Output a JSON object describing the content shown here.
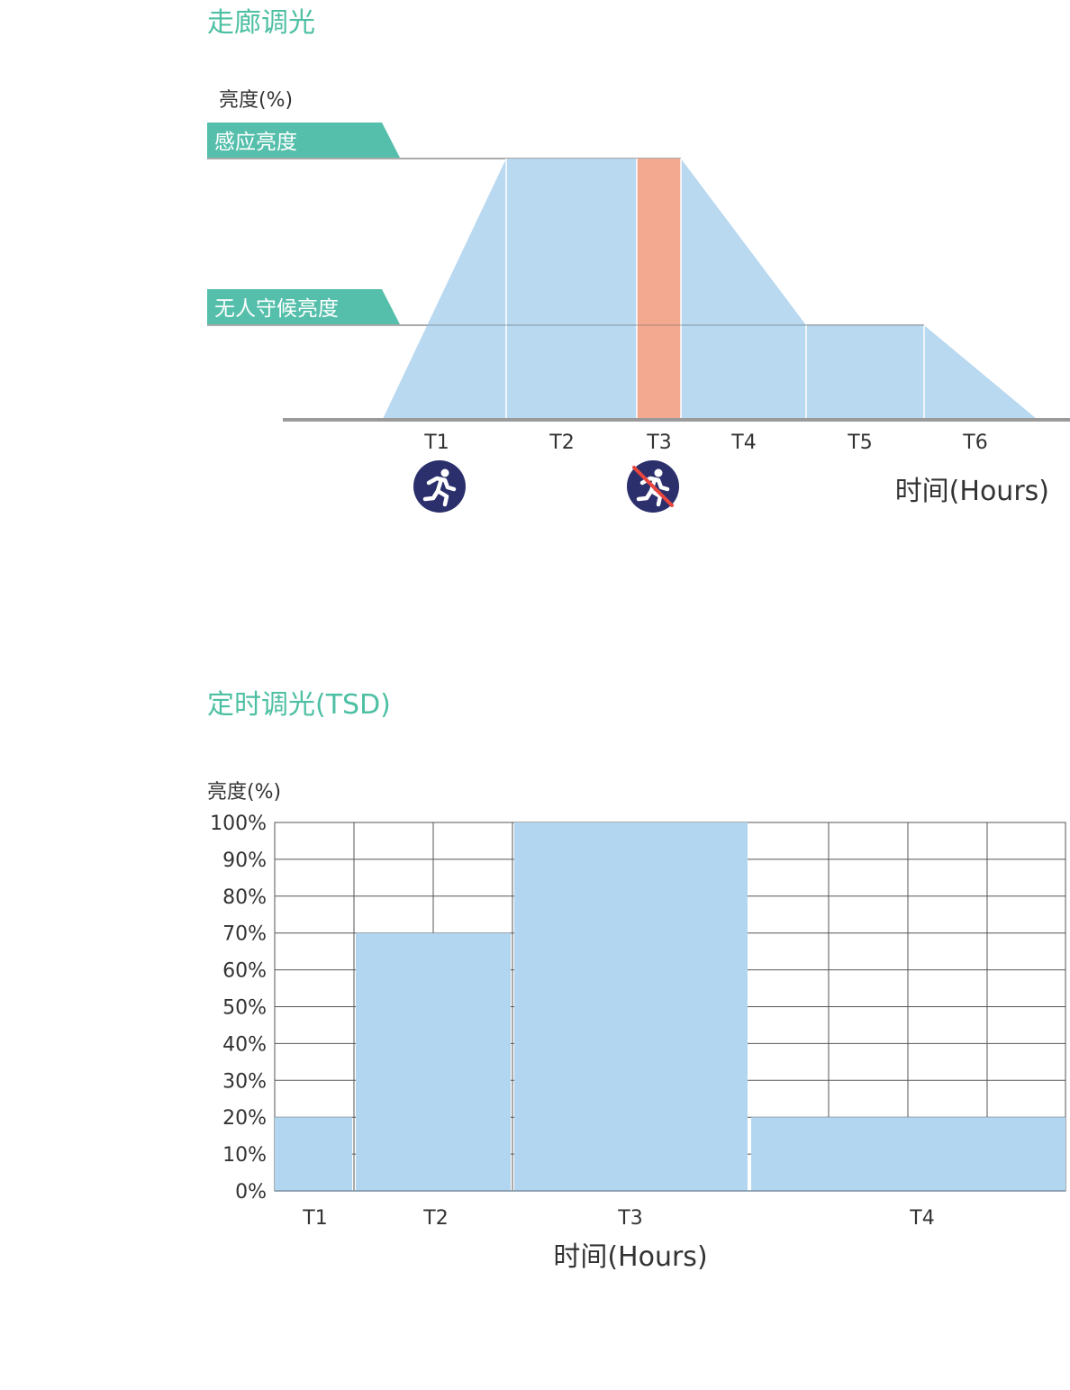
{
  "colors": {
    "title": "#4dbfa3",
    "fill": "#b3d6f0",
    "highlight": "#f3a98f",
    "label_tag": "#55bfab",
    "axis": "#9a9a9a",
    "text": "#333333",
    "grid": "#555555",
    "icon_bg": "#2b2f6b",
    "icon_slash": "#e8463f"
  },
  "sections": {
    "corridor_title": "走廊调光",
    "tsd_title": "定时调光(TSD)"
  },
  "chart_data": [
    {
      "type": "area",
      "title": "走廊调光",
      "ylabel": "亮度(%)",
      "xlabel": "时间(Hours)",
      "level_labels": {
        "sensing": "感应亮度",
        "standby": "无人守候亮度"
      },
      "categories": [
        "T1",
        "T2",
        "T3",
        "T4",
        "T5",
        "T6"
      ],
      "profile": [
        {
          "phase": "T1",
          "start": 0.0,
          "end": 1.0,
          "description": "ramp up"
        },
        {
          "phase": "T2",
          "start": 1.0,
          "end": 1.0
        },
        {
          "phase": "T3",
          "start": 1.0,
          "end": 1.0,
          "highlight": true
        },
        {
          "phase": "T4",
          "start": 1.0,
          "end": 0.36
        },
        {
          "phase": "T5",
          "start": 0.36,
          "end": 0.36
        },
        {
          "phase": "T6",
          "start": 0.36,
          "end": 0.0
        }
      ],
      "icons": [
        {
          "name": "person-running-icon",
          "under": "T1"
        },
        {
          "name": "no-person-icon",
          "under": "T3"
        }
      ],
      "grid": false
    },
    {
      "type": "bar",
      "title": "定时调光(TSD)",
      "ylabel": "亮度(%)",
      "xlabel": "时间(Hours)",
      "categories": [
        "T1",
        "T2",
        "T3",
        "T4"
      ],
      "values": [
        20,
        70,
        100,
        20
      ],
      "yticks": [
        "0%",
        "10%",
        "20%",
        "30%",
        "40%",
        "50%",
        "60%",
        "70%",
        "80%",
        "90%",
        "100%"
      ],
      "ylim": [
        0,
        100
      ],
      "grid": true
    }
  ]
}
